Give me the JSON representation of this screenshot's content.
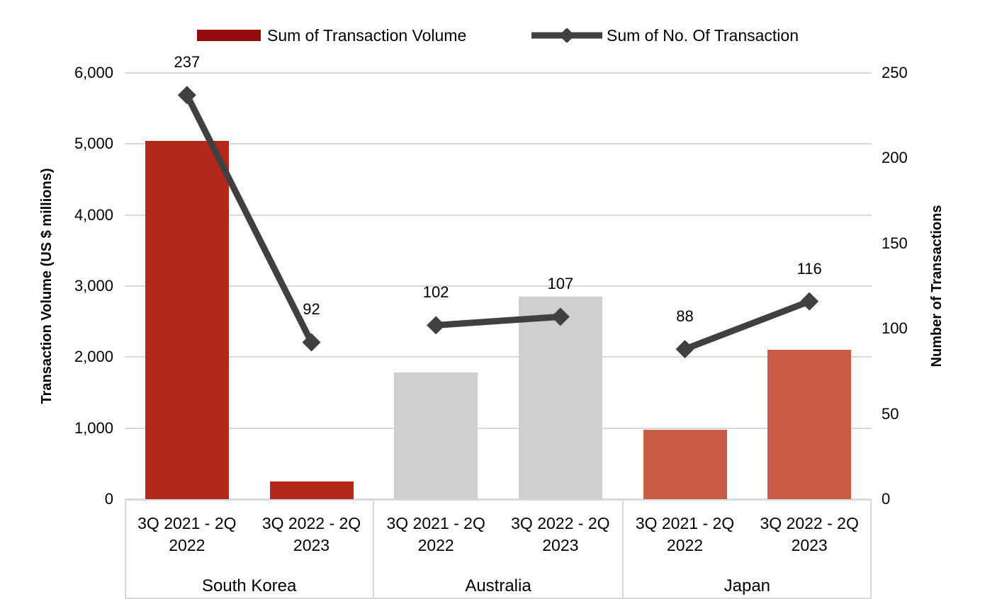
{
  "legend": {
    "volume_label": "Sum of Transaction Volume",
    "count_label": "Sum of No. Of Transaction"
  },
  "colors": {
    "legend_bar_swatch": "#930b0d",
    "bar_south_korea": "#b3281a",
    "bar_australia": "#d0cfcf",
    "bar_japan": "#cb5a46",
    "line": "#404040",
    "gridline": "#d9d9d9",
    "text": "#000000"
  },
  "chart_data": {
    "type": "bar",
    "subtype": "combo-bar-line-dual-axis",
    "groups": [
      "South Korea",
      "Australia",
      "Japan"
    ],
    "categories": [
      "3Q 2021 - 2Q 2022",
      "3Q 2022 - 2Q 2023",
      "3Q 2021 - 2Q 2022",
      "3Q 2022 - 2Q 2023",
      "3Q 2021 - 2Q 2022",
      "3Q 2022 - 2Q 2023"
    ],
    "category_tick_lines": [
      [
        "3Q 2021 - 2Q",
        "2022"
      ],
      [
        "3Q 2022 - 2Q",
        "2023"
      ]
    ],
    "series": [
      {
        "name": "Sum of Transaction Volume",
        "type": "bar",
        "axis": "left",
        "values": [
          5040,
          250,
          1780,
          2850,
          980,
          2100
        ],
        "point_colors": [
          "#b3281a",
          "#b3281a",
          "#d0cfcf",
          "#d0cfcf",
          "#cb5a46",
          "#cb5a46"
        ]
      },
      {
        "name": "Sum of No. Of Transaction",
        "type": "line",
        "axis": "right",
        "values": [
          237,
          92,
          102,
          107,
          88,
          116
        ],
        "data_labels": [
          "237",
          "92",
          "102",
          "107",
          "88",
          "116"
        ],
        "line_broken_between_groups": true,
        "marker": "diamond"
      }
    ],
    "left_axis": {
      "title": "Transaction Volume (US $ millions)",
      "min": 0,
      "max": 6000,
      "step": 1000,
      "tick_labels": [
        "0",
        "1,000",
        "2,000",
        "3,000",
        "4,000",
        "5,000",
        "6,000"
      ]
    },
    "right_axis": {
      "title": "Number of Transactions",
      "min": 0,
      "max": 250,
      "step": 50,
      "tick_labels": [
        "0",
        "50",
        "100",
        "150",
        "200",
        "250"
      ]
    },
    "grid": true,
    "legend_position": "top"
  }
}
